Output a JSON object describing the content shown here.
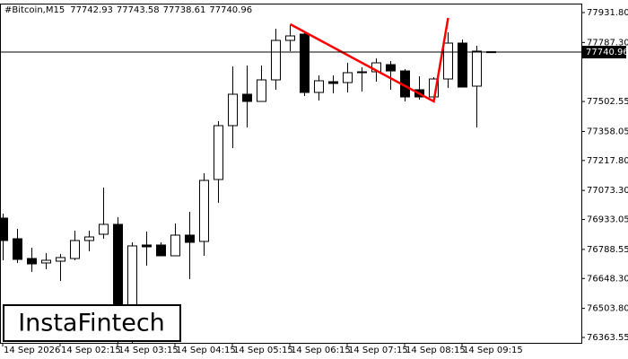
{
  "chart_data": {
    "type": "candlestick",
    "symbol": "#Bitcoin,M15",
    "watermark": "InstaFintech",
    "categories": [
      "14 Sep 2026",
      null,
      null,
      null,
      "14 Sep 02:15",
      null,
      null,
      null,
      "14 Sep 03:15",
      null,
      null,
      null,
      "14 Sep 04:15",
      null,
      null,
      null,
      "14 Sep 05:15",
      null,
      null,
      null,
      "14 Sep 06:15",
      null,
      null,
      null,
      "14 Sep 07:15",
      null,
      null,
      null,
      "14 Sep 08:15",
      null,
      null,
      null,
      "14 Sep 09:15",
      null,
      null
    ],
    "open": [
      76939.8,
      76840.1,
      76744.8,
      76723.2,
      76731.8,
      76744.8,
      76831.5,
      76861.8,
      76909.5,
      76368.0,
      76809.8,
      76809.8,
      76757.8,
      76857.5,
      76827.1,
      77126.1,
      77386.0,
      77537.6,
      77502.9,
      77606.9,
      77797.5,
      77827.8,
      77546.3,
      77598.2,
      77593.9,
      77641.6,
      77645.9,
      77680.5,
      77650.2,
      77559.3,
      77524.6,
      77611.2,
      77784.5,
      77576.6,
      77742.93
    ],
    "high": [
      76961.4,
      76887.8,
      76796.8,
      76770.8,
      76766.5,
      76879.1,
      76879.1,
      77087.1,
      76944.1,
      76822.8,
      76874.8,
      76822.8,
      76913.8,
      76970.1,
      77156.4,
      77407.6,
      77671.9,
      77676.2,
      77676.2,
      77853.8,
      77871.2,
      77836.5,
      77628.6,
      77628.6,
      77689.2,
      77667.5,
      77710.9,
      77697.9,
      77658.9,
      77624.2,
      77619.9,
      77836.5,
      77801.8,
      77771.5,
      77743.58
    ],
    "low": [
      76736.2,
      76723.2,
      76679.9,
      76692.9,
      76636.5,
      76736.2,
      76779.5,
      76840.1,
      76337.6,
      76337.6,
      76710.2,
      76757.8,
      76757.8,
      76645.2,
      76757.8,
      77013.4,
      77277.7,
      77377.3,
      77502.9,
      77559.3,
      77745.5,
      77528.9,
      77507.3,
      77541.9,
      77546.3,
      77550.6,
      77598.2,
      77559.3,
      77502.9,
      77511.6,
      77507.3,
      77567.9,
      77572.2,
      77377.3,
      77738.61
    ],
    "close": [
      76831.5,
      76740.5,
      76718.8,
      76736.2,
      76749.2,
      76831.5,
      76848.8,
      76909.5,
      76411.3,
      76805.5,
      76801.2,
      76757.8,
      76857.5,
      76822.8,
      77121.7,
      77386.0,
      77537.6,
      77502.9,
      77606.9,
      77797.5,
      77819.2,
      77546.3,
      77602.6,
      77589.6,
      77641.6,
      77645.9,
      77689.2,
      77650.2,
      77524.6,
      77524.6,
      77611.2,
      77784.5,
      77572.2,
      77745.5,
      77740.96
    ],
    "up_color": "#ffffff",
    "down_color": "#000000",
    "pattern_line": {
      "color": "#ff0000",
      "category_index": [
        20,
        30,
        31
      ],
      "values": [
        77875.5,
        77502.9,
        77905.8
      ]
    },
    "ylim": [
      76337.6,
      77970.8
    ],
    "yticks": [
      {
        "value": 77931.8,
        "label": "77931.80"
      },
      {
        "value": 77787.3,
        "label": "77787.30"
      },
      {
        "value": 77502.55,
        "label": "77502.55"
      },
      {
        "value": 77358.05,
        "label": "77358.05"
      },
      {
        "value": 77217.8,
        "label": "77217.80"
      },
      {
        "value": 77073.3,
        "label": "77073.30"
      },
      {
        "value": 76933.05,
        "label": "76933.05"
      },
      {
        "value": 76788.55,
        "label": "76788.55"
      },
      {
        "value": 76648.3,
        "label": "76648.30"
      },
      {
        "value": 76503.8,
        "label": "76503.80"
      },
      {
        "value": 76363.55,
        "label": "76363.55"
      }
    ]
  }
}
